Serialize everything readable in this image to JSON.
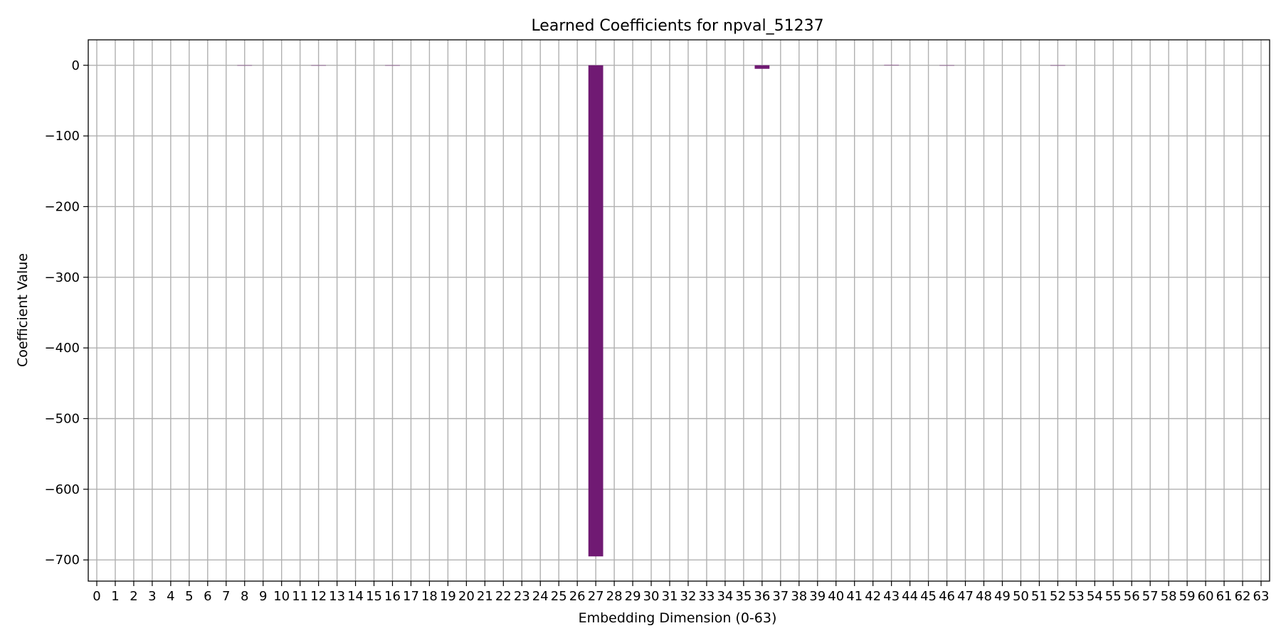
{
  "chart_data": {
    "type": "bar",
    "title": "Learned Coefficients for npval_51237",
    "xlabel": "Embedding Dimension (0-63)",
    "ylabel": "Coefficient Value",
    "categories": [
      "0",
      "1",
      "2",
      "3",
      "4",
      "5",
      "6",
      "7",
      "8",
      "9",
      "10",
      "11",
      "12",
      "13",
      "14",
      "15",
      "16",
      "17",
      "18",
      "19",
      "20",
      "21",
      "22",
      "23",
      "24",
      "25",
      "26",
      "27",
      "28",
      "29",
      "30",
      "31",
      "32",
      "33",
      "34",
      "35",
      "36",
      "37",
      "38",
      "39",
      "40",
      "41",
      "42",
      "43",
      "44",
      "45",
      "46",
      "47",
      "48",
      "49",
      "50",
      "51",
      "52",
      "53",
      "54",
      "55",
      "56",
      "57",
      "58",
      "59",
      "60",
      "61",
      "62",
      "63"
    ],
    "values": [
      0,
      0,
      0,
      0,
      0,
      0,
      0,
      0,
      -0.5,
      0,
      0,
      0,
      -0.5,
      0,
      0,
      0,
      -0.5,
      0,
      0,
      0,
      0,
      0,
      0,
      0,
      0,
      0,
      0,
      -695,
      0,
      0,
      0,
      0,
      0,
      0,
      0,
      0,
      -5,
      0,
      0,
      0,
      0,
      0,
      0,
      0.5,
      0,
      0,
      -0.5,
      0,
      0,
      0,
      0,
      0,
      -0.5,
      0,
      0,
      0,
      0,
      0,
      0,
      0,
      0,
      0,
      0,
      0
    ],
    "ylim": [
      -730,
      36
    ],
    "yticks": [
      0,
      -100,
      -200,
      -300,
      -400,
      -500,
      -600,
      -700
    ],
    "grid": true,
    "colors": {
      "bar": "#701a73",
      "grid": "#b0b0b0",
      "axis": "#000000"
    }
  }
}
